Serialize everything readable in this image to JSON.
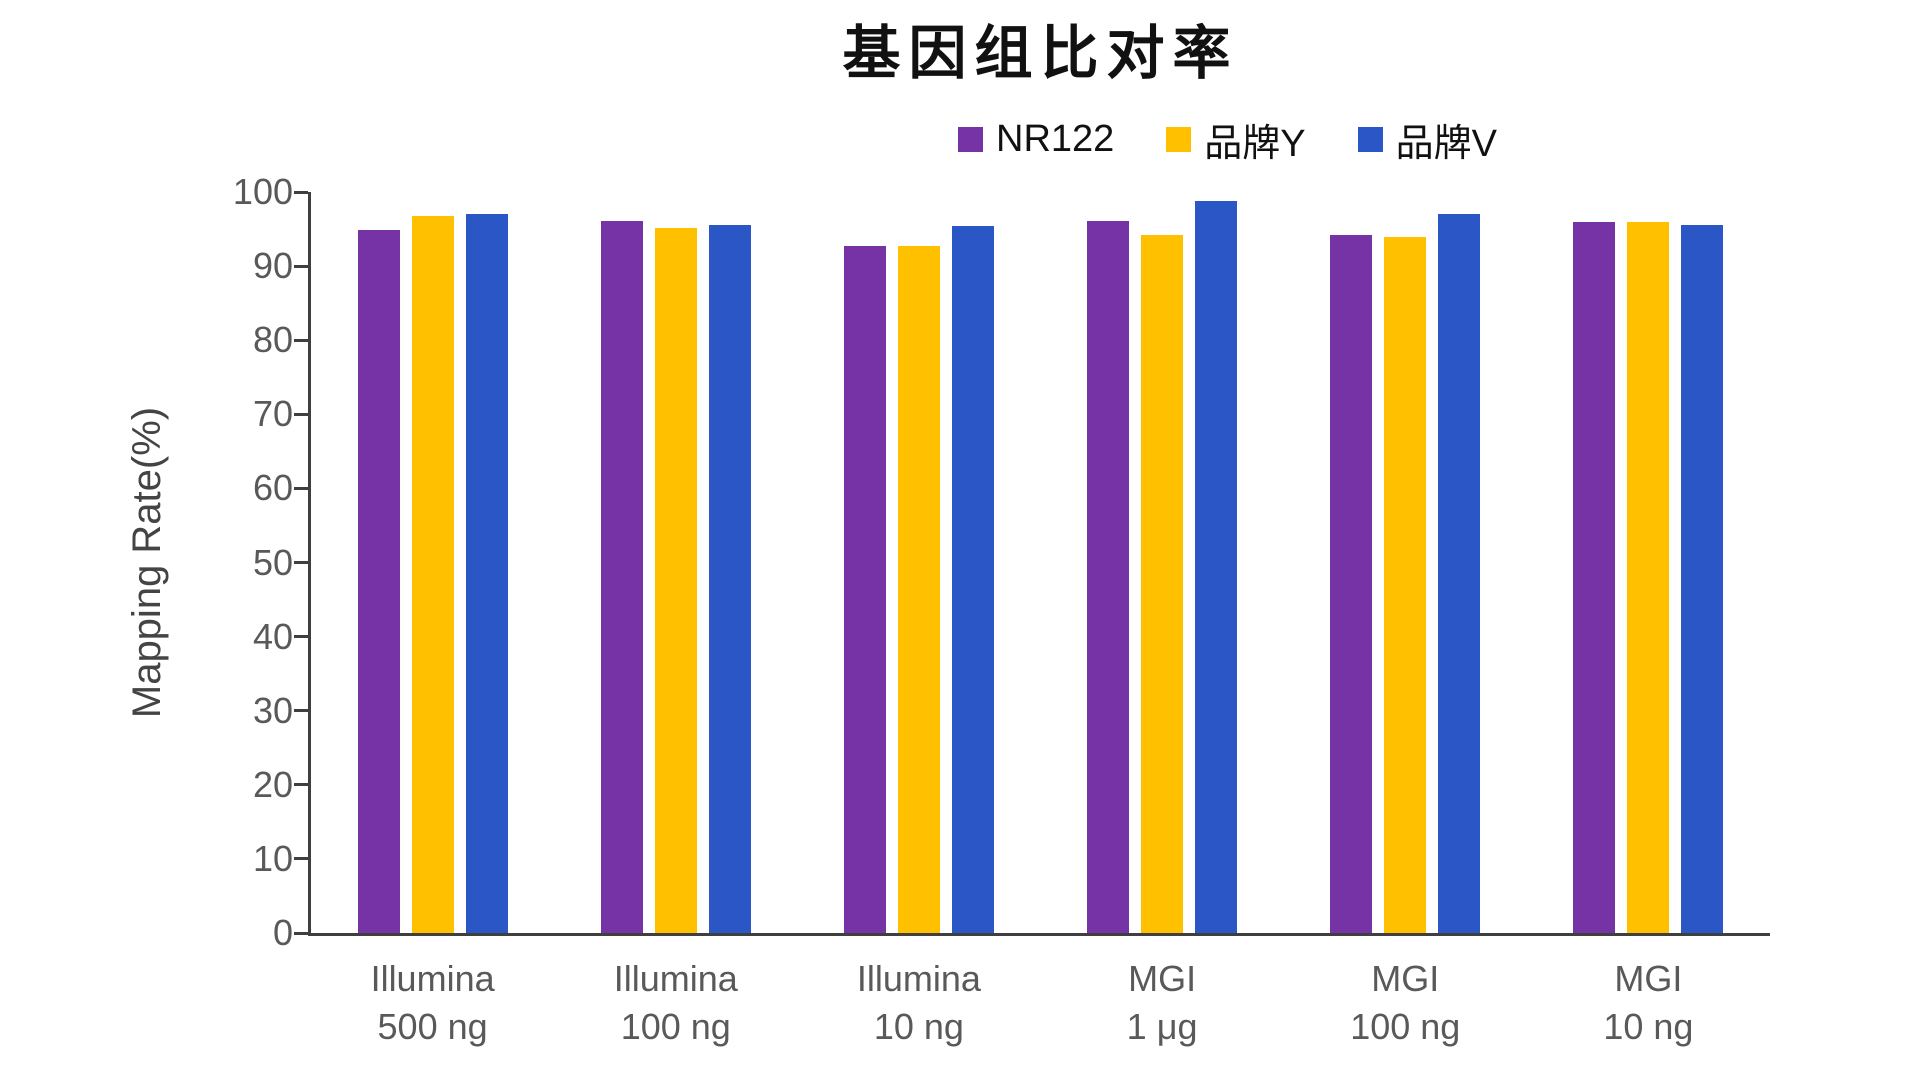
{
  "chart_data": {
    "type": "bar",
    "title": "基因组比对率",
    "ylabel": "Mapping Rate(%)",
    "ylim": [
      0,
      100
    ],
    "ytick_step": 10,
    "yticks": [
      0,
      10,
      20,
      30,
      40,
      50,
      60,
      70,
      80,
      90,
      100
    ],
    "grid": false,
    "legend_position": "top-right",
    "categories": [
      [
        "Illumina",
        "500 ng"
      ],
      [
        "Illumina",
        "100 ng"
      ],
      [
        "Illumina",
        "10 ng"
      ],
      [
        "MGI",
        "1 μg"
      ],
      [
        "MGI",
        "100 ng"
      ],
      [
        "MGI",
        "10 ng"
      ]
    ],
    "series": [
      {
        "name": "NR122",
        "color": "#7633A6",
        "values": [
          94.9,
          96.1,
          92.7,
          96.1,
          94.2,
          95.9
        ]
      },
      {
        "name": "品牌Y",
        "color": "#FFC000",
        "values": [
          96.7,
          95.2,
          92.7,
          94.2,
          93.9,
          95.9
        ]
      },
      {
        "name": "品牌V",
        "color": "#2A56C6",
        "values": [
          97.0,
          95.5,
          95.4,
          98.8,
          97.0,
          95.5
        ]
      }
    ],
    "axis_color": "#3F3F3F",
    "tick_label_color": "#595959"
  }
}
